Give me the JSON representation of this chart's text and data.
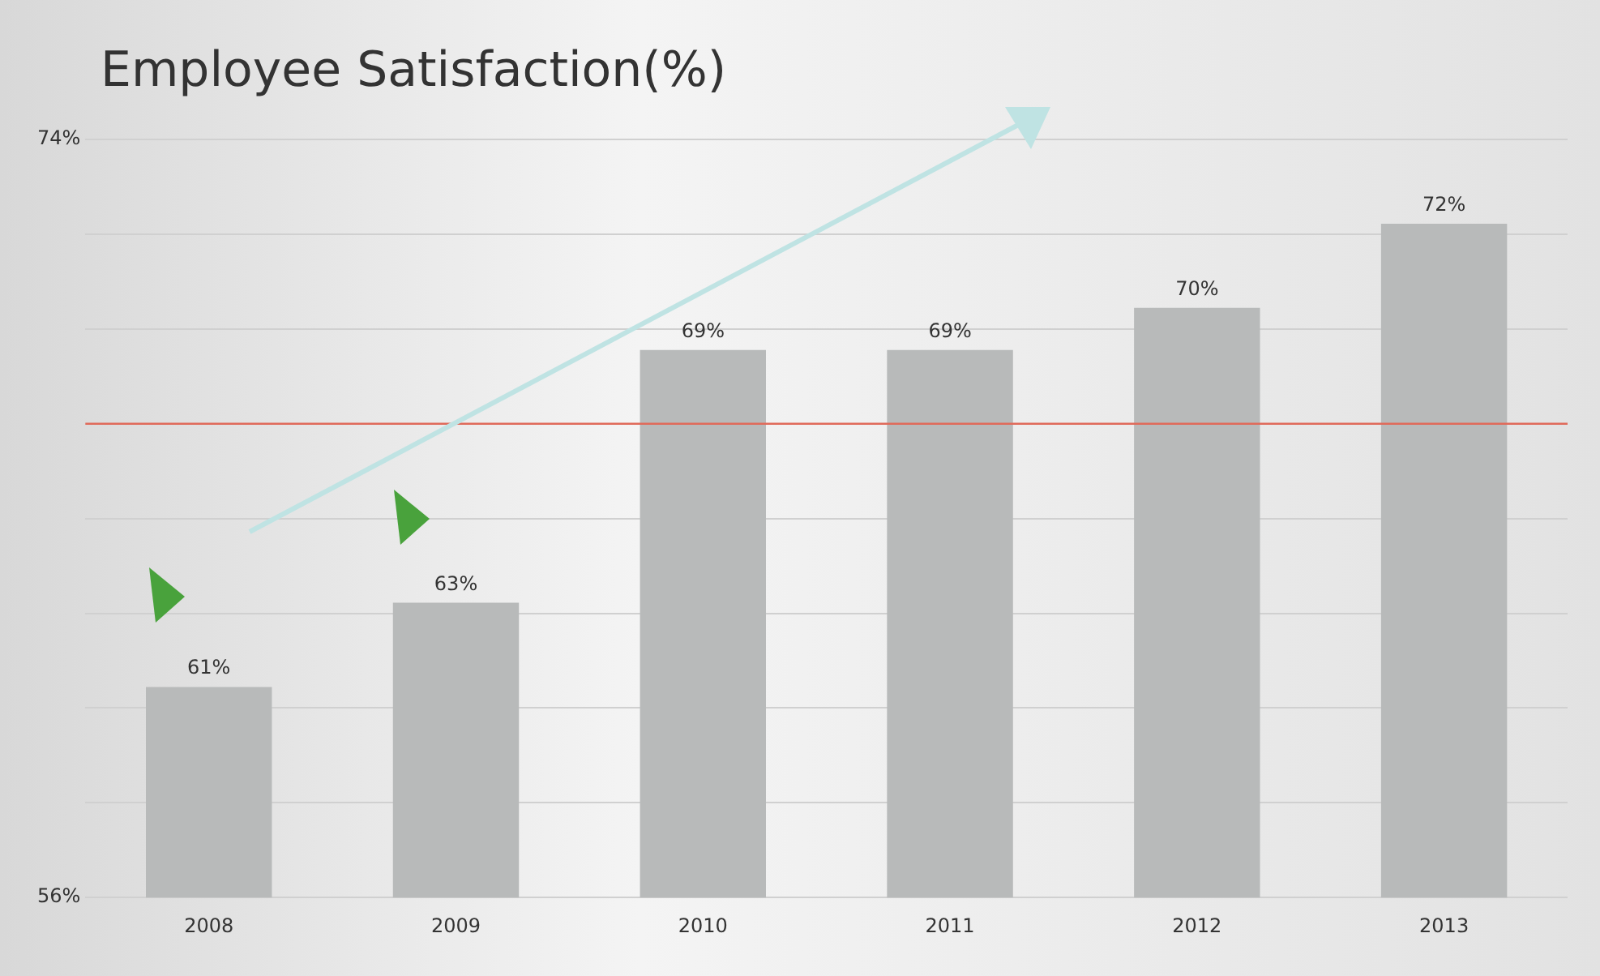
{
  "chart_data": {
    "type": "bar",
    "title": "Employee Satisfaction(%)",
    "categories": [
      "2008",
      "2009",
      "2010",
      "2011",
      "2012",
      "2013"
    ],
    "values": [
      61,
      63,
      69,
      69,
      70,
      72
    ],
    "value_labels": [
      "61%",
      "63%",
      "69%",
      "69%",
      "70%",
      "72%"
    ],
    "color": "#b8baba",
    "ylim": [
      56,
      74
    ],
    "yticks": [
      {
        "value": 56,
        "label": "56%"
      },
      {
        "value": 58.25,
        "label": null
      },
      {
        "value": 60.5,
        "label": null
      },
      {
        "value": 62.75,
        "label": null
      },
      {
        "value": 65,
        "label": null
      },
      {
        "value": 67.25,
        "label": null
      },
      {
        "value": 69.5,
        "label": null
      },
      {
        "value": 71.75,
        "label": null
      },
      {
        "value": 74,
        "label": "74%"
      }
    ],
    "grid": "y",
    "ref_lines": [
      {
        "axis": "y",
        "value": 67.25,
        "color": "#e06a5a"
      }
    ]
  }
}
